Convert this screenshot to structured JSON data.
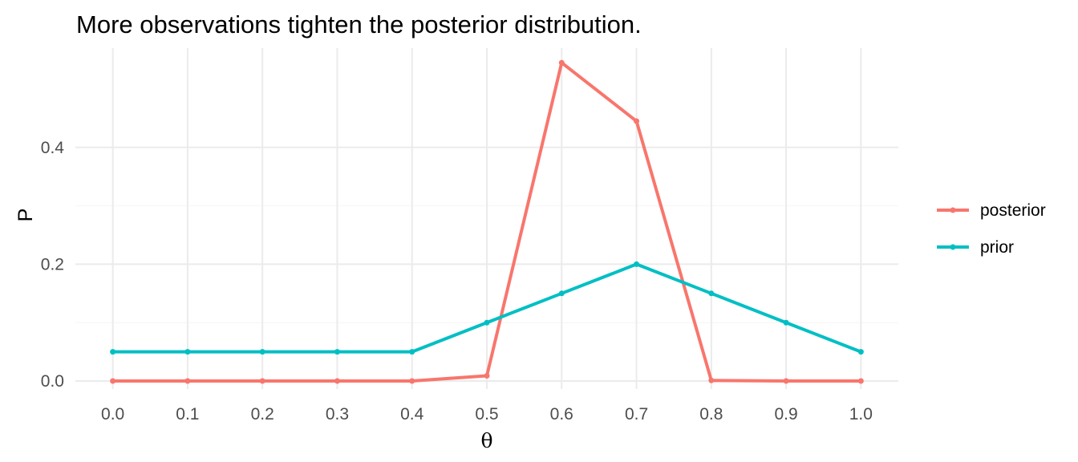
{
  "chart_data": {
    "type": "line",
    "title": "More observations tighten the posterior distribution.",
    "xlabel": "θ",
    "ylabel": "P",
    "x": [
      0.0,
      0.1,
      0.2,
      0.3,
      0.4,
      0.5,
      0.6,
      0.7,
      0.8,
      0.9,
      1.0
    ],
    "x_tick_labels": [
      "0.0",
      "0.1",
      "0.2",
      "0.3",
      "0.4",
      "0.5",
      "0.6",
      "0.7",
      "0.8",
      "0.9",
      "1.0"
    ],
    "y_ticks": [
      0.0,
      0.2,
      0.4
    ],
    "y_tick_labels": [
      "0.0",
      "0.2",
      "0.4"
    ],
    "xlim": [
      -0.05,
      1.05
    ],
    "ylim": [
      -0.0137,
      0.57
    ],
    "grid": true,
    "legend_position": "right",
    "series": [
      {
        "name": "posterior",
        "color": "#F8766D",
        "values": [
          0.0,
          0.0,
          0.0,
          0.0,
          0.0,
          0.009,
          0.545,
          0.445,
          0.001,
          0.0,
          0.0
        ]
      },
      {
        "name": "prior",
        "color": "#00BFC4",
        "values": [
          0.05,
          0.05,
          0.05,
          0.05,
          0.05,
          0.1,
          0.15,
          0.2,
          0.15,
          0.1,
          0.05
        ]
      }
    ]
  }
}
